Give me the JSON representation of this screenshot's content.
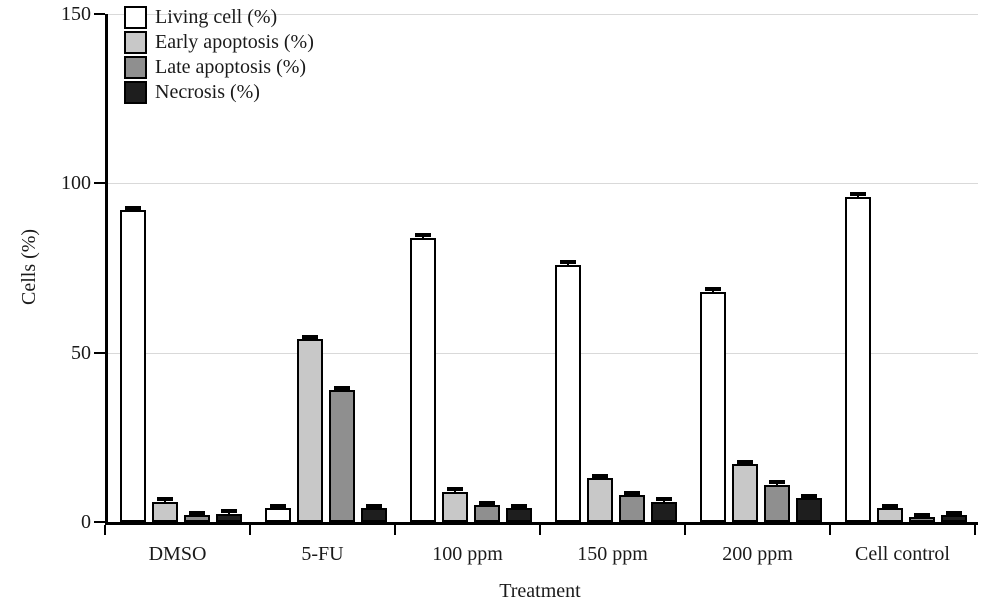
{
  "figure": {
    "background": "#ffffff",
    "text_color": "#1a1a1a"
  },
  "chart_data": {
    "type": "bar",
    "title": "",
    "xlabel": "Treatment",
    "ylabel": "Cells (%)",
    "ylim": [
      0,
      150
    ],
    "yticks": [
      0,
      50,
      100,
      150
    ],
    "grid": "horizontal gridlines at 50, 100 and 150",
    "legend_position": "top-left inside plot area",
    "categories": [
      "DMSO",
      "5-FU",
      "100 ppm",
      "150 ppm",
      "200 ppm",
      "Cell control"
    ],
    "series": [
      {
        "name": "Living cell (%)",
        "color": "#ffffff",
        "values": [
          92,
          4,
          84,
          76,
          68,
          96
        ]
      },
      {
        "name": "Early apoptosis (%)",
        "color": "#c8c8c8",
        "values": [
          6,
          54,
          9,
          13,
          17,
          4
        ]
      },
      {
        "name": "Late apoptosis (%)",
        "color": "#8f8f8f",
        "values": [
          2,
          39,
          5,
          8,
          11,
          1.5
        ]
      },
      {
        "name": "Necrosis (%)",
        "color": "#1e1e1e",
        "values": [
          2.5,
          4,
          4,
          6,
          7,
          2
        ]
      }
    ],
    "error_bar_approx": 1,
    "bar_border_color": "#000000",
    "gridline_color": "#d9d9d9",
    "axis_color": "#000000"
  }
}
